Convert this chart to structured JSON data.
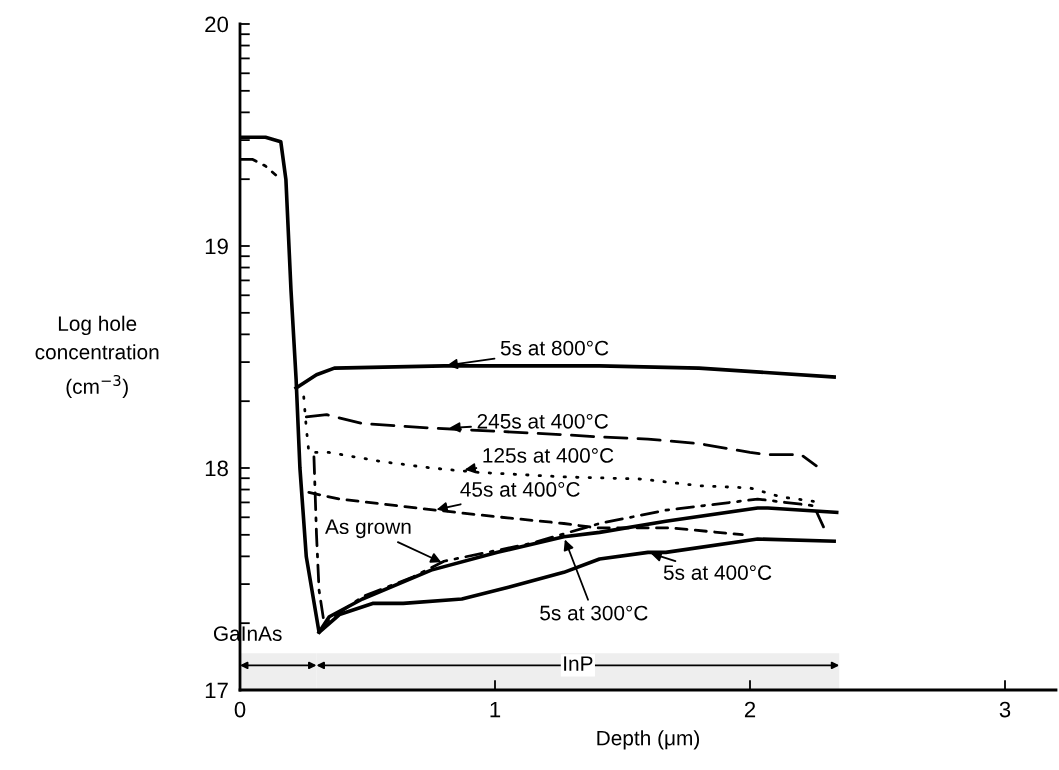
{
  "chart_data": {
    "type": "line",
    "xlabel": "Depth (μm)",
    "ylabel": "Log hole\nconcentration\n(cm$^{−3}$)",
    "xlim": [
      0,
      3.2
    ],
    "xticks": [
      0,
      1,
      2,
      3
    ],
    "ylim": [
      17,
      20
    ],
    "yticks": [
      17,
      {
        "value": 17.301,
        "label": null
      },
      {
        "value": 17.477,
        "label": null
      },
      {
        "value": 17.602,
        "label": null
      },
      {
        "value": 17.699,
        "label": null
      },
      {
        "value": 17.778,
        "label": null
      },
      {
        "value": 17.845,
        "label": null
      },
      {
        "value": 17.903,
        "label": null
      },
      {
        "value": 17.954,
        "label": null
      },
      18,
      {
        "value": 18.301,
        "label": null
      },
      {
        "value": 18.477,
        "label": null
      },
      {
        "value": 18.602,
        "label": null
      },
      {
        "value": 18.699,
        "label": null
      },
      {
        "value": 18.778,
        "label": null
      },
      {
        "value": 18.845,
        "label": null
      },
      {
        "value": 18.903,
        "label": null
      },
      {
        "value": 18.954,
        "label": null
      },
      19,
      {
        "value": 19.301,
        "label": null
      },
      {
        "value": 19.477,
        "label": null
      },
      {
        "value": 19.602,
        "label": null
      },
      {
        "value": 19.699,
        "label": null
      },
      {
        "value": 19.778,
        "label": null
      },
      {
        "value": 19.845,
        "label": null
      },
      {
        "value": 19.903,
        "label": null
      },
      {
        "value": 19.954,
        "label": null
      },
      20
    ],
    "grid": false,
    "legend": false,
    "marker": "none",
    "series": [
      {
        "color": "#000000",
        "line_style": "solid",
        "x": [
          0,
          0.1,
          0.16,
          0.18,
          0.2,
          0.22,
          0.235,
          0.26,
          0.31,
          0.39,
          0.52,
          0.64,
          0.87,
          1.01,
          1.27,
          1.41,
          1.6,
          1.67,
          2.03,
          2.33
        ],
        "values": [
          19.49,
          19.49,
          19.47,
          19.3,
          18.8,
          18.4,
          18.0,
          17.6,
          17.26,
          17.34,
          17.39,
          17.39,
          17.41,
          17.45,
          17.53,
          17.59,
          17.62,
          17.62,
          17.68,
          17.67
        ]
      },
      {
        "color": "#000000",
        "line_style": "solid",
        "x": [
          0.31,
          0.35,
          0.48,
          0.75,
          1.01,
          1.27,
          1.41,
          1.67,
          2.03,
          2.07,
          2.34
        ],
        "values": [
          17.26,
          17.33,
          17.41,
          17.54,
          17.62,
          17.69,
          17.71,
          17.76,
          17.82,
          17.82,
          17.8
        ]
      },
      {
        "color": "#000000",
        "line_style": "solid",
        "x": [
          0.22,
          0.3,
          0.37,
          0.8,
          1.41,
          1.8,
          2.33
        ],
        "values": [
          18.36,
          18.42,
          18.45,
          18.46,
          18.46,
          18.45,
          18.41
        ]
      },
      {
        "color": "#000000",
        "line_style": "longdashed",
        "x": [
          0.26,
          0.34,
          0.48,
          0.75,
          1.27,
          1.41,
          1.6,
          1.8,
          2.0,
          2.07,
          2.2,
          2.26
        ],
        "values": [
          18.23,
          18.24,
          18.2,
          18.18,
          18.15,
          18.14,
          18.13,
          18.11,
          18.07,
          18.06,
          18.06,
          18.01
        ]
      },
      {
        "color": "#000000",
        "line_style": "dotted",
        "x": [
          0.25,
          0.26,
          0.27,
          0.35,
          0.55,
          0.75,
          0.94,
          1.27,
          1.58,
          1.8,
          2.0,
          2.12,
          2.25
        ],
        "values": [
          18.32,
          18.18,
          18.07,
          18.07,
          18.03,
          18.0,
          17.98,
          17.96,
          17.95,
          17.92,
          17.91,
          17.87,
          17.85
        ]
      },
      {
        "color": "#000000",
        "line_style": "dashed",
        "x": [
          0.27,
          0.39,
          0.62,
          0.77,
          1.01,
          1.27,
          1.4,
          1.69,
          1.97
        ],
        "values": [
          17.89,
          17.86,
          17.83,
          17.81,
          17.78,
          17.75,
          17.73,
          17.73,
          17.7
        ]
      },
      {
        "color": "#000000",
        "line_style": "dashdot",
        "x": [
          0,
          0.05,
          0.1,
          0.14,
          0.2,
          0.29,
          0.3,
          0.31,
          0.33,
          0.48,
          0.68,
          0.8,
          1.14,
          1.41,
          1.67,
          2.03,
          2.25,
          2.29
        ],
        "values": [
          19.39,
          19.39,
          19.36,
          19.32,
          null,
          18.05,
          17.7,
          17.45,
          17.3,
          17.42,
          17.51,
          17.58,
          17.66,
          17.75,
          17.81,
          17.86,
          17.83,
          17.73
        ]
      }
    ],
    "annotations": [
      {
        "text": "5s at 800°C",
        "x": 0.8,
        "y": 18.46
      },
      {
        "text": "245s at 400°C",
        "x": 0.81,
        "y": 18.18
      },
      {
        "text": "125s at 400°C",
        "x": 0.87,
        "y": 17.99
      },
      {
        "text": "45s at 400°C",
        "x": 0.76,
        "y": 17.81
      },
      {
        "text": "As grown",
        "x": 0.8,
        "y": 17.57
      },
      {
        "text": "5s at 400°C",
        "x": 1.6,
        "y": 17.62
      },
      {
        "text": "5s at 300°C",
        "x": 1.27,
        "y": 17.69
      }
    ],
    "bands": [
      {
        "axis": "x",
        "from": 0,
        "to": 0.3,
        "label": "GaInAs"
      },
      {
        "axis": "x",
        "from": 0.3,
        "to": 2.35,
        "label": "InP"
      }
    ]
  }
}
